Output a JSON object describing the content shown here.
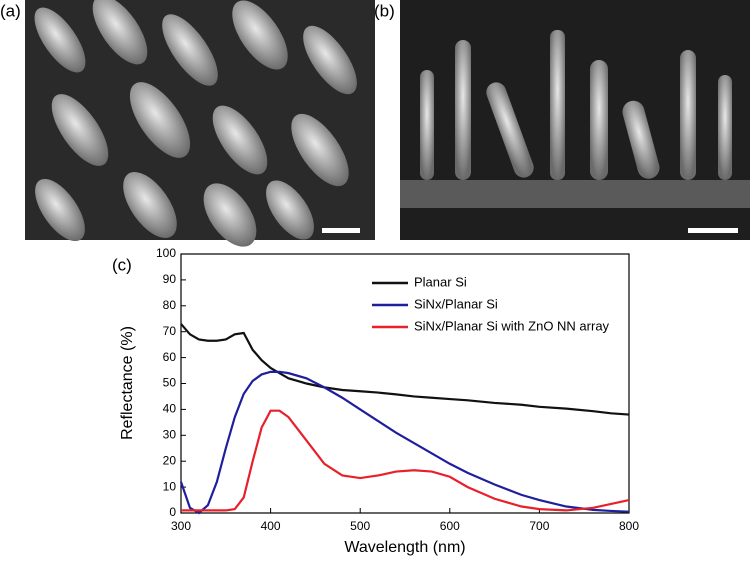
{
  "panel_labels": [
    "(a)",
    "(b)",
    "(c)"
  ],
  "chart_data": {
    "type": "line",
    "x_label": "Wavelength (nm)",
    "y_label": "Reflectance (%)",
    "x": [
      300,
      310,
      320,
      330,
      340,
      350,
      360,
      370,
      380,
      390,
      400,
      410,
      420,
      440,
      460,
      480,
      500,
      520,
      540,
      560,
      580,
      600,
      620,
      650,
      680,
      700,
      730,
      760,
      780,
      800
    ],
    "series": [
      {
        "name": "Planar Si",
        "color": "#111111",
        "values": [
          73,
          69,
          67,
          66.5,
          66.5,
          67,
          69,
          69.5,
          63,
          59,
          56,
          54,
          52,
          50,
          48.5,
          47.5,
          47,
          46.5,
          45.8,
          45,
          44.5,
          44,
          43.5,
          42.5,
          41.8,
          41,
          40.3,
          39.3,
          38.5,
          38
        ]
      },
      {
        "name": "SiNx/Planar Si",
        "color": "#1f1f9e",
        "values": [
          12,
          2,
          0,
          3,
          12,
          25,
          37,
          46,
          51,
          53.5,
          54.5,
          54.5,
          54,
          52,
          48.5,
          44.5,
          40,
          35.5,
          31,
          27,
          23,
          19,
          15.5,
          11,
          7,
          5,
          2.5,
          1.2,
          0.8,
          0.5
        ]
      },
      {
        "name": "SiNx/Planar Si with ZnO NN array",
        "color": "#e8202a",
        "values": [
          1,
          1,
          1,
          1,
          1,
          1,
          1.5,
          6,
          20,
          33,
          39.5,
          39.5,
          37,
          28,
          19,
          14.5,
          13.5,
          14.5,
          16,
          16.5,
          16,
          14,
          10,
          5.5,
          2.5,
          1.5,
          1,
          2,
          3.5,
          5
        ]
      }
    ],
    "xlim": [
      300,
      800
    ],
    "xticks": [
      300,
      400,
      500,
      600,
      700,
      800
    ],
    "ylim": [
      0,
      100
    ],
    "yticks": [
      0,
      10,
      20,
      30,
      40,
      50,
      60,
      70,
      80,
      90,
      100
    ],
    "legend": "top-right"
  }
}
